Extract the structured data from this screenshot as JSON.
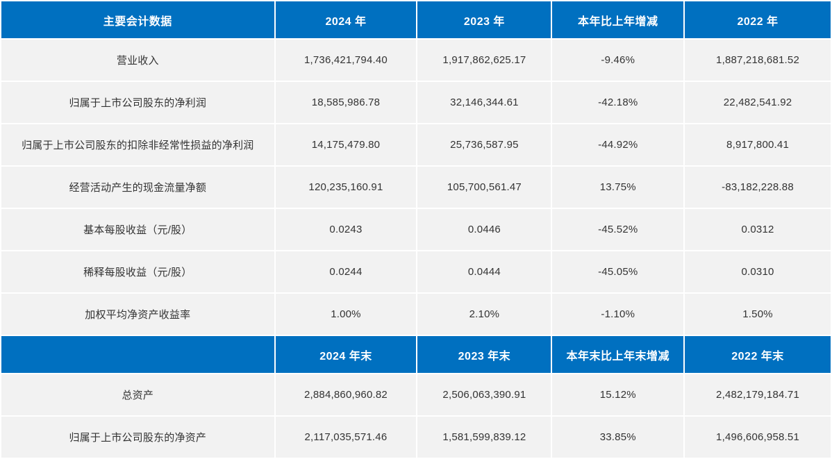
{
  "accent_color": "#0070c0",
  "row_background": "#f2f2f2",
  "separator_color": "#ffffff",
  "annual_section": {
    "headers": [
      "主要会计数据",
      "2024 年",
      "2023 年",
      "本年比上年增减",
      "2022 年"
    ],
    "rows": [
      [
        "营业收入",
        "1,736,421,794.40",
        "1,917,862,625.17",
        "-9.46%",
        "1,887,218,681.52"
      ],
      [
        "归属于上市公司股东的净利润",
        "18,585,986.78",
        "32,146,344.61",
        "-42.18%",
        "22,482,541.92"
      ],
      [
        "归属于上市公司股东的扣除非经常性损益的净利润",
        "14,175,479.80",
        "25,736,587.95",
        "-44.92%",
        "8,917,800.41"
      ],
      [
        "经营活动产生的现金流量净额",
        "120,235,160.91",
        "105,700,561.47",
        "13.75%",
        "-83,182,228.88"
      ],
      [
        "基本每股收益（元/股）",
        "0.0243",
        "0.0446",
        "-45.52%",
        "0.0312"
      ],
      [
        "稀释每股收益（元/股）",
        "0.0244",
        "0.0444",
        "-45.05%",
        "0.0310"
      ],
      [
        "加权平均净资产收益率",
        "1.00%",
        "2.10%",
        "-1.10%",
        "1.50%"
      ]
    ]
  },
  "yearend_section": {
    "headers": [
      "",
      "2024 年末",
      "2023 年末",
      "本年末比上年末增减",
      "2022 年末"
    ],
    "rows": [
      [
        "总资产",
        "2,884,860,960.82",
        "2,506,063,390.91",
        "15.12%",
        "2,482,179,184.71"
      ],
      [
        "归属于上市公司股东的净资产",
        "2,117,035,571.46",
        "1,581,599,839.12",
        "33.85%",
        "1,496,606,958.51"
      ]
    ]
  }
}
